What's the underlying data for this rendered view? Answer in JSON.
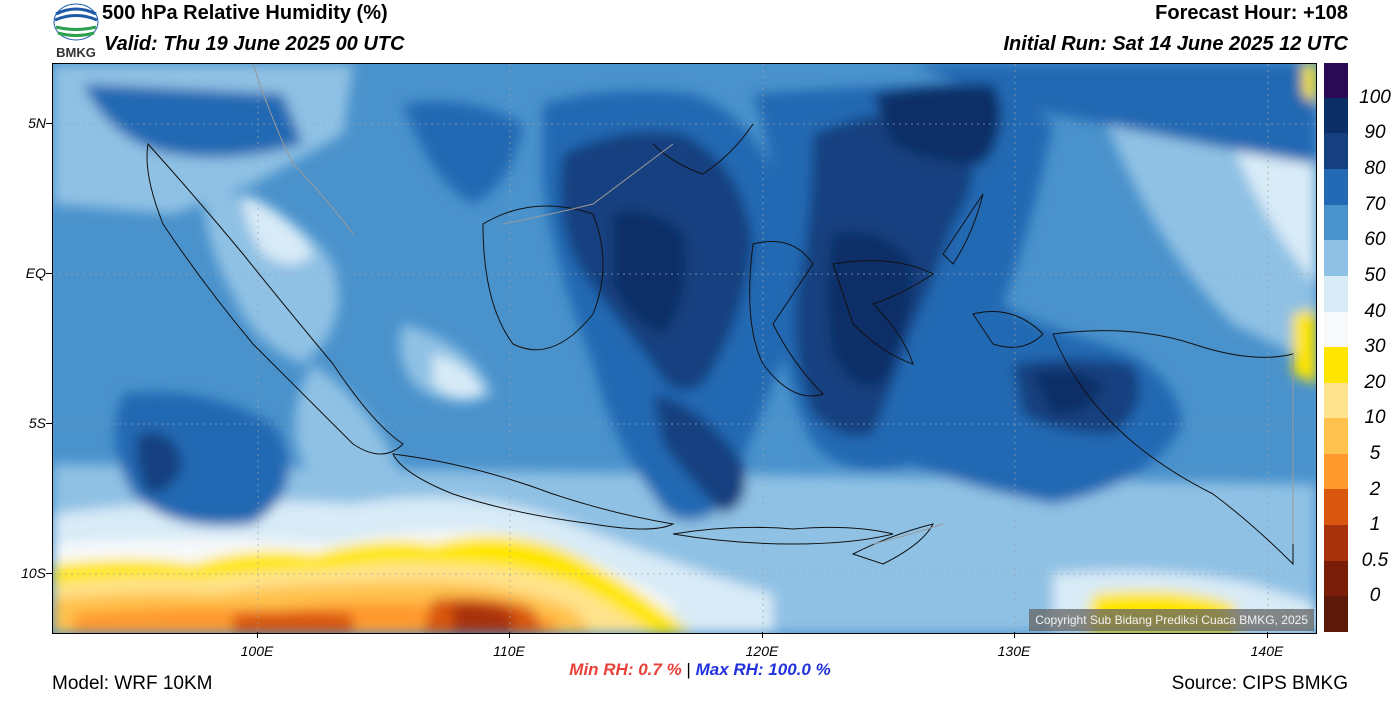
{
  "header": {
    "title": "500 hPa Relative Humidity (%)",
    "valid": "Valid: Thu 19 June 2025 00 UTC",
    "forecast_hour": "Forecast Hour: +108",
    "initial_run": "Initial Run: Sat 14 June 2025 12 UTC",
    "logo_text": "BMKG"
  },
  "axes": {
    "lat_labels": [
      "5N",
      "EQ",
      "5S",
      "10S"
    ],
    "lon_labels": [
      "100E",
      "110E",
      "120E",
      "130E",
      "140E"
    ]
  },
  "colorbar": {
    "labels": [
      "100",
      "90",
      "80",
      "70",
      "60",
      "50",
      "40",
      "30",
      "20",
      "10",
      "5",
      "2",
      "1",
      "0.5",
      "0"
    ],
    "colors": [
      "#2a0a55",
      "#0c2e66",
      "#163f7f",
      "#2469b3",
      "#4a92cc",
      "#8fc1e4",
      "#d8ebf7",
      "#f7f9fb",
      "#ffe600",
      "#ffe38c",
      "#ffc24e",
      "#ff9a2e",
      "#d9560f",
      "#a8320b",
      "#7a1d08",
      "#5c1808",
      "#b5121b",
      "#e8443a"
    ]
  },
  "footer": {
    "min_rh": "Min RH:   0.7 %",
    "separator": "|",
    "max_rh": "Max RH: 100.0 %",
    "model": "Model: WRF 10KM",
    "source": "Source: CIPS BMKG",
    "copyright": "Copyright Sub Bidang Prediksi Cuaca BMKG, 2025"
  }
}
